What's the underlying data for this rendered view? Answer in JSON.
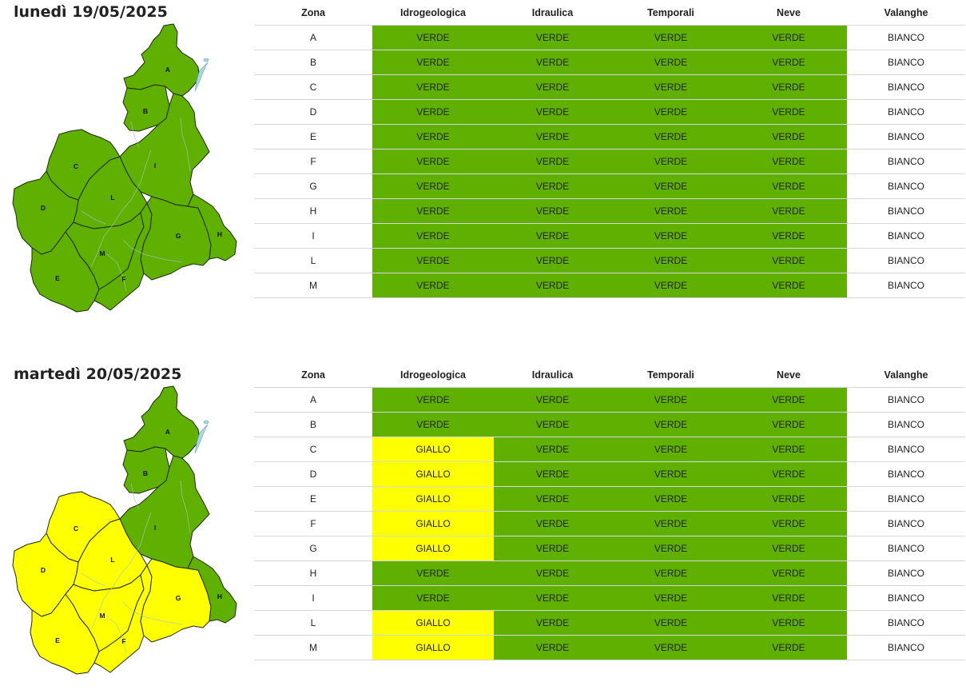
{
  "colors": {
    "VERDE": "#5fb000",
    "GIALLO": "#ffff00",
    "BIANCO": "#ffffff"
  },
  "columns": [
    "Zona",
    "Idrogeologica",
    "Idraulica",
    "Temporali",
    "Neve",
    "Valanghe"
  ],
  "zone_labels": [
    "A",
    "B",
    "C",
    "D",
    "E",
    "F",
    "G",
    "H",
    "I",
    "L",
    "M"
  ],
  "days": [
    {
      "title": "lunedì 19/05/2025",
      "map_levels": {
        "A": "VERDE",
        "B": "VERDE",
        "C": "VERDE",
        "D": "VERDE",
        "E": "VERDE",
        "F": "VERDE",
        "G": "VERDE",
        "H": "VERDE",
        "I": "VERDE",
        "L": "VERDE",
        "M": "VERDE"
      },
      "rows": [
        [
          "A",
          "VERDE",
          "VERDE",
          "VERDE",
          "VERDE",
          "BIANCO"
        ],
        [
          "B",
          "VERDE",
          "VERDE",
          "VERDE",
          "VERDE",
          "BIANCO"
        ],
        [
          "C",
          "VERDE",
          "VERDE",
          "VERDE",
          "VERDE",
          "BIANCO"
        ],
        [
          "D",
          "VERDE",
          "VERDE",
          "VERDE",
          "VERDE",
          "BIANCO"
        ],
        [
          "E",
          "VERDE",
          "VERDE",
          "VERDE",
          "VERDE",
          "BIANCO"
        ],
        [
          "F",
          "VERDE",
          "VERDE",
          "VERDE",
          "VERDE",
          "BIANCO"
        ],
        [
          "G",
          "VERDE",
          "VERDE",
          "VERDE",
          "VERDE",
          "BIANCO"
        ],
        [
          "H",
          "VERDE",
          "VERDE",
          "VERDE",
          "VERDE",
          "BIANCO"
        ],
        [
          "I",
          "VERDE",
          "VERDE",
          "VERDE",
          "VERDE",
          "BIANCO"
        ],
        [
          "L",
          "VERDE",
          "VERDE",
          "VERDE",
          "VERDE",
          "BIANCO"
        ],
        [
          "M",
          "VERDE",
          "VERDE",
          "VERDE",
          "VERDE",
          "BIANCO"
        ]
      ]
    },
    {
      "title": "martedì 20/05/2025",
      "map_levels": {
        "A": "VERDE",
        "B": "VERDE",
        "C": "GIALLO",
        "D": "GIALLO",
        "E": "GIALLO",
        "F": "GIALLO",
        "G": "GIALLO",
        "H": "VERDE",
        "I": "VERDE",
        "L": "GIALLO",
        "M": "GIALLO"
      },
      "rows": [
        [
          "A",
          "VERDE",
          "VERDE",
          "VERDE",
          "VERDE",
          "BIANCO"
        ],
        [
          "B",
          "VERDE",
          "VERDE",
          "VERDE",
          "VERDE",
          "BIANCO"
        ],
        [
          "C",
          "GIALLO",
          "VERDE",
          "VERDE",
          "VERDE",
          "BIANCO"
        ],
        [
          "D",
          "GIALLO",
          "VERDE",
          "VERDE",
          "VERDE",
          "BIANCO"
        ],
        [
          "E",
          "GIALLO",
          "VERDE",
          "VERDE",
          "VERDE",
          "BIANCO"
        ],
        [
          "F",
          "GIALLO",
          "VERDE",
          "VERDE",
          "VERDE",
          "BIANCO"
        ],
        [
          "G",
          "GIALLO",
          "VERDE",
          "VERDE",
          "VERDE",
          "BIANCO"
        ],
        [
          "H",
          "VERDE",
          "VERDE",
          "VERDE",
          "VERDE",
          "BIANCO"
        ],
        [
          "I",
          "VERDE",
          "VERDE",
          "VERDE",
          "VERDE",
          "BIANCO"
        ],
        [
          "L",
          "GIALLO",
          "VERDE",
          "VERDE",
          "VERDE",
          "BIANCO"
        ],
        [
          "M",
          "GIALLO",
          "VERDE",
          "VERDE",
          "VERDE",
          "BIANCO"
        ]
      ]
    }
  ]
}
